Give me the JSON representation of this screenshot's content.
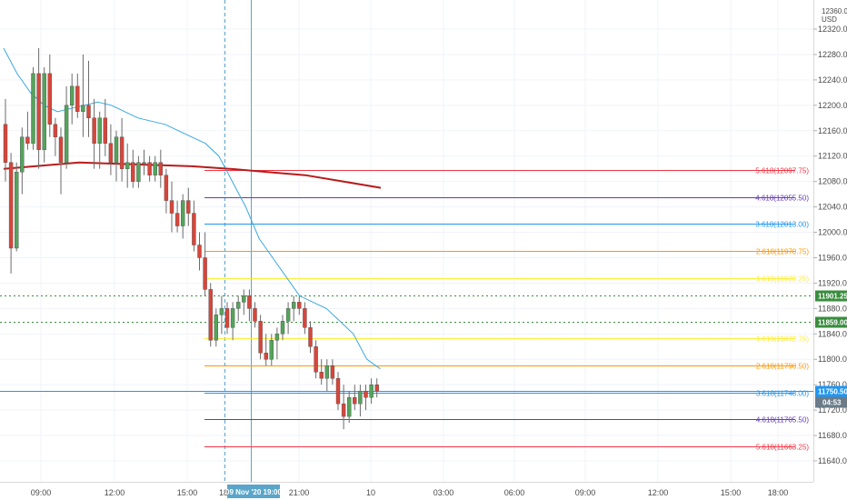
{
  "chart_data": {
    "type": "candlestick",
    "currency": "USD",
    "currency_top_tick": "12360.00",
    "y_ticks": [
      "12320.00",
      "12280.00",
      "12240.00",
      "12200.00",
      "12160.00",
      "12120.00",
      "12080.00",
      "12040.00",
      "12000.00",
      "11960.00",
      "11920.00",
      "11880.00",
      "11840.00",
      "11800.00",
      "11760.00",
      "11720.00",
      "11680.00",
      "11640.00"
    ],
    "x_ticks": [
      "09:00",
      "12:00",
      "15:00",
      "18",
      "21:00",
      "10",
      "03:00",
      "06:00",
      "09:00",
      "12:00",
      "15:00",
      "18:00"
    ],
    "x_highlight_label": "09 Nov '20   19:00",
    "fib_levels": [
      {
        "label": "5.618(12097.75)",
        "value": 12097.75,
        "color": "#f23645"
      },
      {
        "label": "4.618(12055.50)",
        "value": 12055.5,
        "color": "#673ab7"
      },
      {
        "label": "3.618(12013.00)",
        "value": 12013.0,
        "color": "#2196f3"
      },
      {
        "label": "2.618(11970.75)",
        "value": 11970.75,
        "color": "#ff9800"
      },
      {
        "label": "1.618(11928.25)",
        "value": 11928.25,
        "color": "#ffeb3b"
      },
      {
        "label": "1.618(11832.75)",
        "value": 11832.75,
        "color": "#ffeb3b"
      },
      {
        "label": "2.618(11790.50)",
        "value": 11790.5,
        "color": "#ff9800"
      },
      {
        "label": "3.618(11748.00)",
        "value": 11748.0,
        "color": "#2196f3"
      },
      {
        "label": "4.618(11705.50)",
        "value": 11705.5,
        "color": "#673ab7"
      },
      {
        "label": "5.618(11663.25)",
        "value": 11663.25,
        "color": "#f23645"
      }
    ],
    "horizontal_levels": [
      {
        "label": "11901.25",
        "value": 11901.25,
        "color": "#388e3c"
      },
      {
        "label": "11859.00",
        "value": 11859.0,
        "color": "#388e3c"
      }
    ],
    "last_price": {
      "label": "11750.50",
      "value": 11750.5,
      "color": "#2196f3"
    },
    "countdown": "04:53",
    "ohlc": [
      [
        12170,
        12210,
        12080,
        12110
      ],
      [
        12110,
        12125,
        11935,
        11975
      ],
      [
        11975,
        12110,
        11970,
        12095
      ],
      [
        12095,
        12165,
        12060,
        12150
      ],
      [
        12150,
        12190,
        12130,
        12140
      ],
      [
        12140,
        12260,
        12130,
        12250
      ],
      [
        12250,
        12290,
        12100,
        12130
      ],
      [
        12130,
        12260,
        12110,
        12250
      ],
      [
        12250,
        12280,
        12150,
        12170
      ],
      [
        12170,
        12180,
        12120,
        12150
      ],
      [
        12150,
        12165,
        12060,
        12110
      ],
      [
        12110,
        12230,
        12100,
        12200
      ],
      [
        12200,
        12250,
        12170,
        12230
      ],
      [
        12230,
        12250,
        12180,
        12190
      ],
      [
        12190,
        12280,
        12150,
        12200
      ],
      [
        12200,
        12270,
        12150,
        12180
      ],
      [
        12180,
        12210,
        12100,
        12140
      ],
      [
        12140,
        12190,
        12100,
        12180
      ],
      [
        12180,
        12210,
        12120,
        12140
      ],
      [
        12140,
        12170,
        12090,
        12110
      ],
      [
        12110,
        12160,
        12080,
        12150
      ],
      [
        12150,
        12180,
        12080,
        12100
      ],
      [
        12100,
        12140,
        12070,
        12110
      ],
      [
        12110,
        12130,
        12070,
        12080
      ],
      [
        12080,
        12120,
        12070,
        12110
      ],
      [
        12110,
        12130,
        12090,
        12110
      ],
      [
        12110,
        12120,
        12080,
        12090
      ],
      [
        12090,
        12120,
        12080,
        12110
      ],
      [
        12110,
        12130,
        12070,
        12090
      ],
      [
        12090,
        12100,
        12030,
        12050
      ],
      [
        12050,
        12080,
        12000,
        12030
      ],
      [
        12030,
        12050,
        12000,
        12010
      ],
      [
        12010,
        12060,
        11990,
        12050
      ],
      [
        12050,
        12070,
        12010,
        12030
      ],
      [
        12030,
        12050,
        11970,
        11980
      ],
      [
        11980,
        12000,
        11940,
        11960
      ],
      [
        11960,
        12000,
        11900,
        11910
      ],
      [
        11910,
        11920,
        11820,
        11830
      ],
      [
        11830,
        11880,
        11820,
        11870
      ],
      [
        11870,
        11900,
        11840,
        11880
      ],
      [
        11880,
        11890,
        11840,
        11850
      ],
      [
        11850,
        11890,
        11830,
        11880
      ],
      [
        11880,
        11900,
        11860,
        11890
      ],
      [
        11890,
        11910,
        11870,
        11900
      ],
      [
        11900,
        11910,
        11860,
        11880
      ],
      [
        11880,
        11890,
        11850,
        11860
      ],
      [
        11860,
        11870,
        11800,
        11810
      ],
      [
        11810,
        11840,
        11790,
        11800
      ],
      [
        11800,
        11840,
        11790,
        11830
      ],
      [
        11830,
        11850,
        11800,
        11840
      ],
      [
        11840,
        11870,
        11830,
        11860
      ],
      [
        11860,
        11890,
        11840,
        11880
      ],
      [
        11880,
        11900,
        11860,
        11890
      ],
      [
        11890,
        11900,
        11870,
        11880
      ],
      [
        11880,
        11890,
        11840,
        11850
      ],
      [
        11850,
        11860,
        11810,
        11820
      ],
      [
        11820,
        11830,
        11770,
        11780
      ],
      [
        11780,
        11800,
        11760,
        11770
      ],
      [
        11770,
        11800,
        11750,
        11790
      ],
      [
        11790,
        11800,
        11760,
        11770
      ],
      [
        11770,
        11780,
        11720,
        11730
      ],
      [
        11730,
        11760,
        11690,
        11710
      ],
      [
        11710,
        11750,
        11700,
        11740
      ],
      [
        11740,
        11760,
        11720,
        11730
      ],
      [
        11730,
        11760,
        11710,
        11750
      ],
      [
        11750,
        11760,
        11720,
        11740
      ],
      [
        11740,
        11770,
        11730,
        11760
      ],
      [
        11760,
        11770,
        11740,
        11750
      ]
    ],
    "ema_short": [
      12290,
      12250,
      12220,
      12200,
      12190,
      12195,
      12200,
      12205,
      12200,
      12190,
      12180,
      12175,
      12170,
      12160,
      12150,
      12140,
      12120,
      12080,
      12040,
      11990,
      11960,
      11930,
      11900,
      11890,
      11880,
      11860,
      11840,
      11800,
      11785
    ],
    "ema_long": [
      12100,
      12105,
      12110,
      12108,
      12106,
      12104,
      12100,
      12095,
      12090,
      12080,
      12070
    ],
    "grid": true,
    "legend": "none"
  }
}
